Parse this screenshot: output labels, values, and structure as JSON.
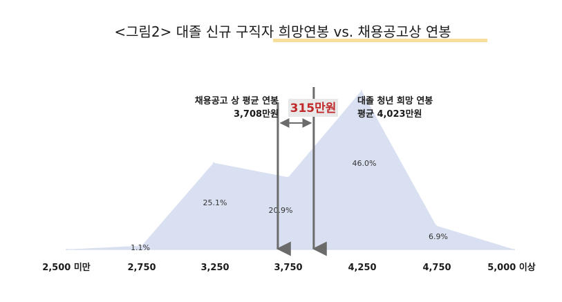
{
  "title": "<그림2> 대졸 신규 구직자 희망연봉 vs. 채용공고상 연봉",
  "colors": {
    "area_fill": "#d9e0f1",
    "guide_line": "#6b6b6b",
    "gap_text": "#c0282a",
    "gap_box": "#e8e8e8",
    "title_underline": "#f3c24a"
  },
  "annotations": {
    "left_line1": "채용공고 상 평균 연봉",
    "left_line2": "3,708만원",
    "right_line1": "대졸 청년 희망 연봉",
    "right_line2": "평균 4,023만원",
    "gap": "315만원"
  },
  "chart_data": {
    "type": "area",
    "categories": [
      "2,500 미만",
      "2,750",
      "3,250",
      "3,750",
      "4,250",
      "4,750",
      "5,000 이상"
    ],
    "values": [
      0.0,
      1.1,
      25.1,
      20.9,
      46.0,
      6.9,
      0.0
    ],
    "data_labels": [
      "",
      "1.1%",
      "25.1%",
      "20.9%",
      "46.0%",
      "6.9%",
      ""
    ],
    "ylim": [
      0,
      50
    ],
    "reference_lines": [
      {
        "label": "채용공고 상 평균 연봉",
        "value": 3708
      },
      {
        "label": "대졸 청년 희망 연봉",
        "value": 4023
      }
    ],
    "grid": false,
    "legend": "none"
  }
}
